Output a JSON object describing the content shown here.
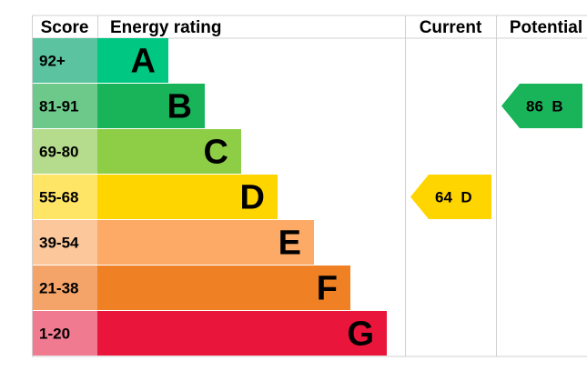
{
  "headers": {
    "score": "Score",
    "rating": "Energy rating",
    "current": "Current",
    "potential": "Potential"
  },
  "chart_data": {
    "type": "bar",
    "bands": [
      {
        "letter": "A",
        "range": "92+",
        "score_color": "#5cc3a0",
        "bar_color": "#00c781"
      },
      {
        "letter": "B",
        "range": "81-91",
        "score_color": "#6cc98a",
        "bar_color": "#19b459"
      },
      {
        "letter": "C",
        "range": "69-80",
        "score_color": "#b5dc8c",
        "bar_color": "#8dce46"
      },
      {
        "letter": "D",
        "range": "55-68",
        "score_color": "#ffe566",
        "bar_color": "#ffd500"
      },
      {
        "letter": "E",
        "range": "39-54",
        "score_color": "#fcc79b",
        "bar_color": "#fcaa65"
      },
      {
        "letter": "F",
        "range": "21-38",
        "score_color": "#f4a469",
        "bar_color": "#ef8023"
      },
      {
        "letter": "G",
        "range": "1-20",
        "score_color": "#f07a90",
        "bar_color": "#e9153b"
      }
    ],
    "current": {
      "value": 64,
      "letter": "D",
      "label": "64  D",
      "color": "#ffd500"
    },
    "potential": {
      "value": 86,
      "letter": "B",
      "label": "86  B",
      "color": "#19b459"
    }
  }
}
